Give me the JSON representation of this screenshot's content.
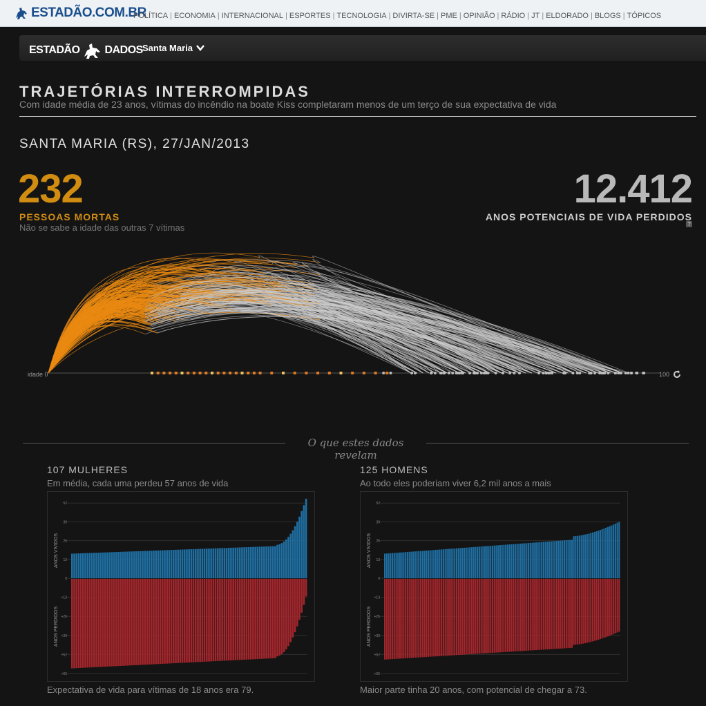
{
  "site": {
    "logo": "ESTADÃO.COM.BR",
    "nav": [
      "POLÍTICA",
      "ECONOMIA",
      "INTERNACIONAL",
      "ESPORTES",
      "TECNOLOGIA",
      "DIVIRTA-SE",
      "PME",
      "OPINIÃO",
      "RÁDIO",
      "JT",
      "ELDORADO",
      "BLOGS",
      "TÓPICOS"
    ]
  },
  "subheader": {
    "brand_left": "ESTADÃO",
    "brand_right": "DADOS",
    "city": "Santa Maria"
  },
  "article": {
    "title": "TRAJETÓRIAS INTERROMPIDAS",
    "subtitle": "Com idade média de 23 anos, vítimas do incêndio na boate Kiss completaram menos de um terço de sua expectativa de vida",
    "place_date": "SANTA MARIA (RS), 27/JAN/2013",
    "deaths_value": "232",
    "deaths_label": "PESSOAS MORTAS",
    "deaths_note": "Não se sabe a idade das outras 7 vítimas",
    "years_value": "12.412",
    "years_label": "ANOS POTENCIAIS DE VIDA PERDIDOS",
    "help": "?",
    "axis_start": "idade 0",
    "axis_end": "100",
    "reveal": "O que estes dados revelam"
  },
  "panels": {
    "women": {
      "title": "107 MULHERES",
      "subtitle": "Em média, cada uma perdeu 57 anos de vida",
      "note": "Expectativa de vida para vítimas de 18 anos era 79.",
      "ylabel_top": "ANOS VIVIDOS",
      "ylabel_bottom": "ANOS PERDIDOS",
      "ticks": [
        "52",
        "39",
        "26",
        "13",
        "0",
        "+13",
        "+26",
        "+39",
        "+52",
        "+65"
      ]
    },
    "men": {
      "title": "125 HOMENS",
      "subtitle": "Ao todo eles poderiam viver 6,2 mil anos a mais",
      "note": "Maior parte tinha 20 anos, com potencial de chegar a 73.",
      "ylabel_top": "ANOS VIVIDOS",
      "ylabel_bottom": "ANOS PERDIDOS",
      "ticks": [
        "52",
        "39",
        "26",
        "13",
        "0",
        "+13",
        "+26",
        "+39",
        "+52",
        "+65"
      ]
    }
  },
  "chart_data": [
    {
      "type": "arc",
      "description_x": "age from 0 to 100",
      "xlim": [
        0,
        100
      ],
      "colors": {
        "lived": "#e98a12",
        "lost": "#cfcfcf"
      }
    },
    {
      "type": "bar",
      "name": "women",
      "ylim_lived": [
        0,
        52
      ],
      "ylim_lost": [
        0,
        65
      ],
      "count": 107,
      "lived_min": 17,
      "lived_max": 55,
      "lost_min": 12,
      "lost_max": 61,
      "colors": {
        "lived": "#1f6fa3",
        "lost": "#a3262c"
      }
    },
    {
      "type": "bar",
      "name": "men",
      "ylim_lived": [
        0,
        52
      ],
      "ylim_lost": [
        0,
        65
      ],
      "count": 125,
      "lived_min": 17,
      "lived_max": 39,
      "lost_min": 36,
      "lost_max": 55,
      "colors": {
        "lived": "#1f6fa3",
        "lost": "#a3262c"
      }
    }
  ]
}
